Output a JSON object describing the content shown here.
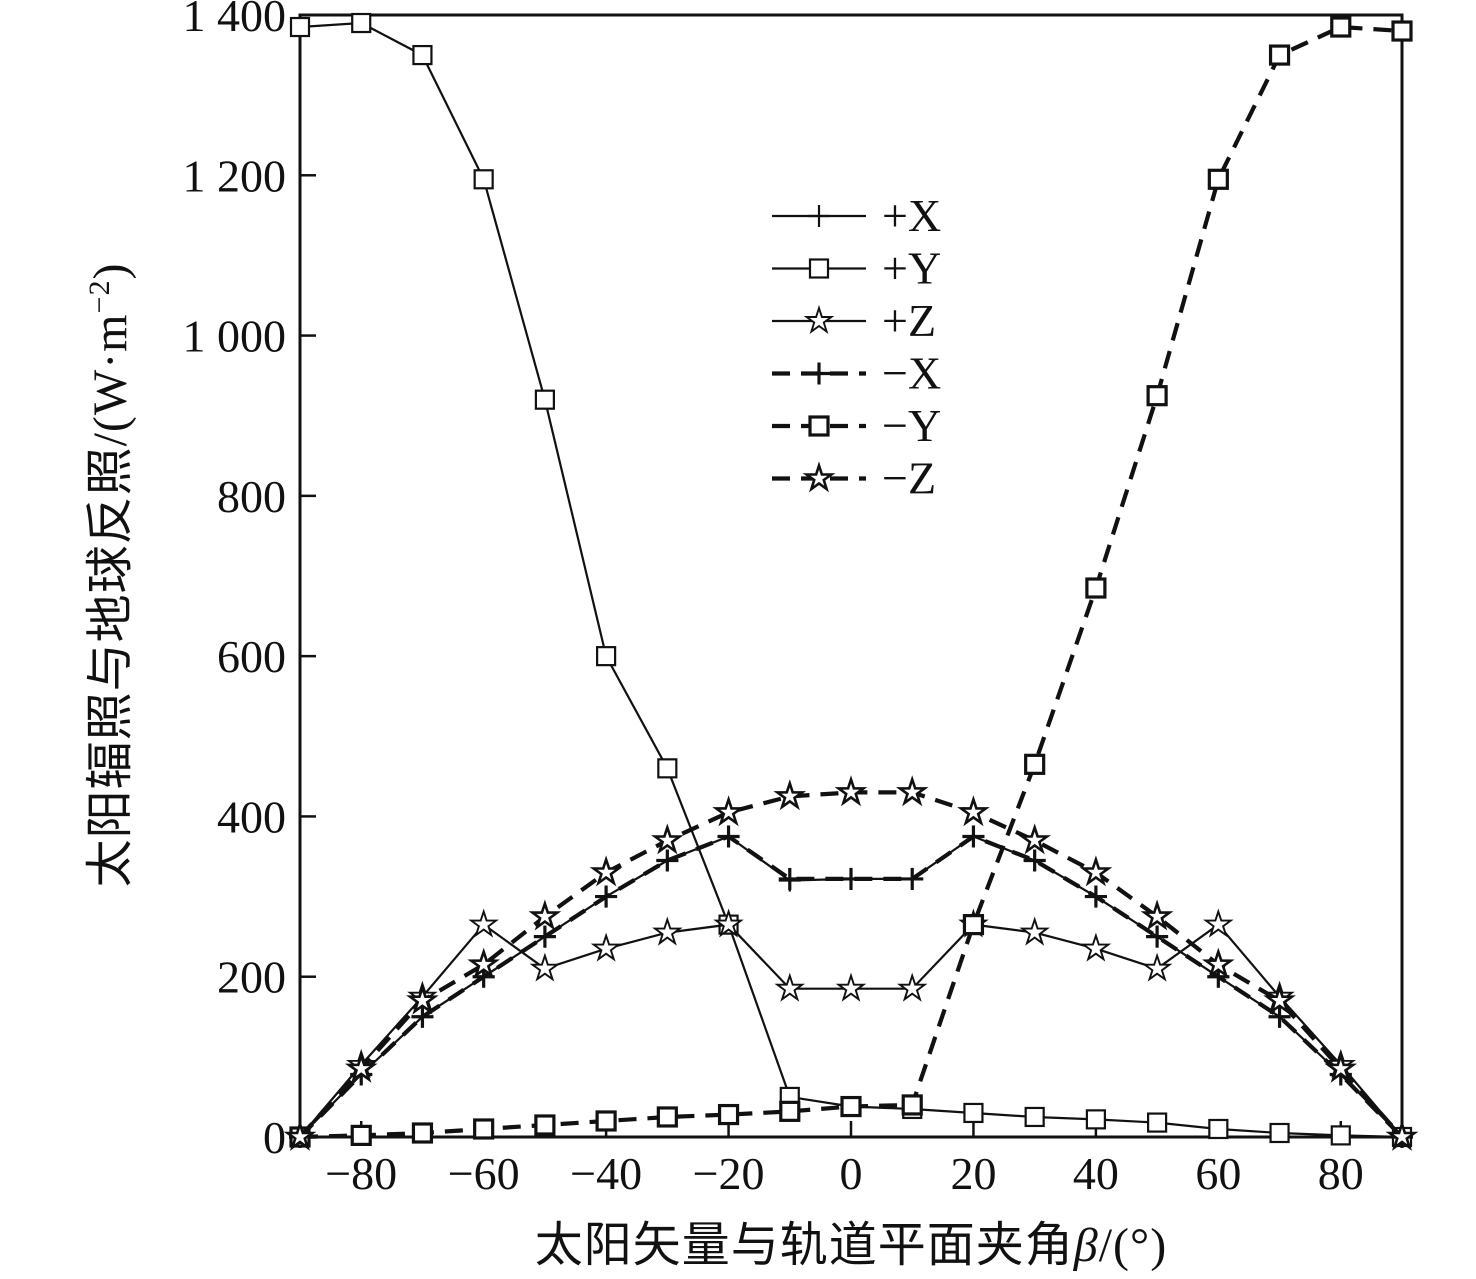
{
  "axes": {
    "ylabel_prefix": "太阳辐照与地球反照/(W·m",
    "ylabel_sup": "−2",
    "ylabel_suffix": ")",
    "xlabel_prefix": "太阳矢量与轨道平面夹角",
    "xlabel_beta": "β",
    "xlabel_suffix": "/(°)"
  },
  "chart_data": {
    "type": "line",
    "title": "",
    "xlabel": "太阳矢量与轨道平面夹角β/(°)",
    "ylabel": "太阳辐照与地球反照/(W·m−2)",
    "xlim": [
      -90,
      90
    ],
    "ylim": [
      0,
      1400
    ],
    "grid": false,
    "legend_position": "upper-center-inside",
    "line_color": "#111111",
    "xticks": [
      -80,
      -60,
      -40,
      -20,
      0,
      20,
      40,
      60,
      80
    ],
    "xtick_labels": [
      "−80",
      "−60",
      "−40",
      "−20",
      "0",
      "20",
      "40",
      "60",
      "80"
    ],
    "yticks": [
      0,
      200,
      400,
      600,
      800,
      1000,
      1200,
      1400
    ],
    "ytick_labels": [
      "0",
      "200",
      "400",
      "600",
      "800",
      "1 000",
      "1 200",
      "1 400"
    ],
    "x": [
      -90,
      -80,
      -70,
      -60,
      -50,
      -40,
      -30,
      -20,
      -10,
      0,
      10,
      20,
      30,
      40,
      50,
      60,
      70,
      80,
      90
    ],
    "series": [
      {
        "label": "+X",
        "marker": "plus",
        "dash": false,
        "values": [
          0,
          78,
          150,
          200,
          250,
          300,
          345,
          375,
          320,
          322,
          322,
          375,
          345,
          300,
          250,
          200,
          150,
          78,
          0
        ]
      },
      {
        "label": "+Y",
        "marker": "square",
        "dash": false,
        "values": [
          1385,
          1390,
          1350,
          1195,
          920,
          600,
          460,
          265,
          50,
          38,
          35,
          30,
          25,
          22,
          18,
          10,
          5,
          2,
          0
        ]
      },
      {
        "label": "+Z",
        "marker": "star",
        "dash": false,
        "values": [
          0,
          90,
          175,
          265,
          210,
          235,
          255,
          265,
          185,
          185,
          185,
          265,
          255,
          235,
          210,
          265,
          175,
          90,
          0
        ]
      },
      {
        "label": "−X",
        "marker": "plus",
        "dash": true,
        "values": [
          0,
          78,
          150,
          200,
          250,
          300,
          345,
          375,
          322,
          322,
          322,
          375,
          345,
          300,
          250,
          200,
          150,
          78,
          0
        ]
      },
      {
        "label": "−Y",
        "marker": "square",
        "dash": true,
        "values": [
          0,
          2,
          5,
          10,
          15,
          20,
          25,
          28,
          32,
          38,
          40,
          265,
          465,
          685,
          925,
          1195,
          1350,
          1385,
          1380
        ]
      },
      {
        "label": "−Z",
        "marker": "star",
        "dash": true,
        "values": [
          0,
          85,
          170,
          215,
          275,
          330,
          370,
          405,
          425,
          430,
          430,
          405,
          370,
          330,
          275,
          215,
          170,
          85,
          0
        ]
      }
    ],
    "legend_items": [
      "+X",
      "+Y",
      "+Z",
      "−X",
      "−Y",
      "−Z"
    ]
  }
}
